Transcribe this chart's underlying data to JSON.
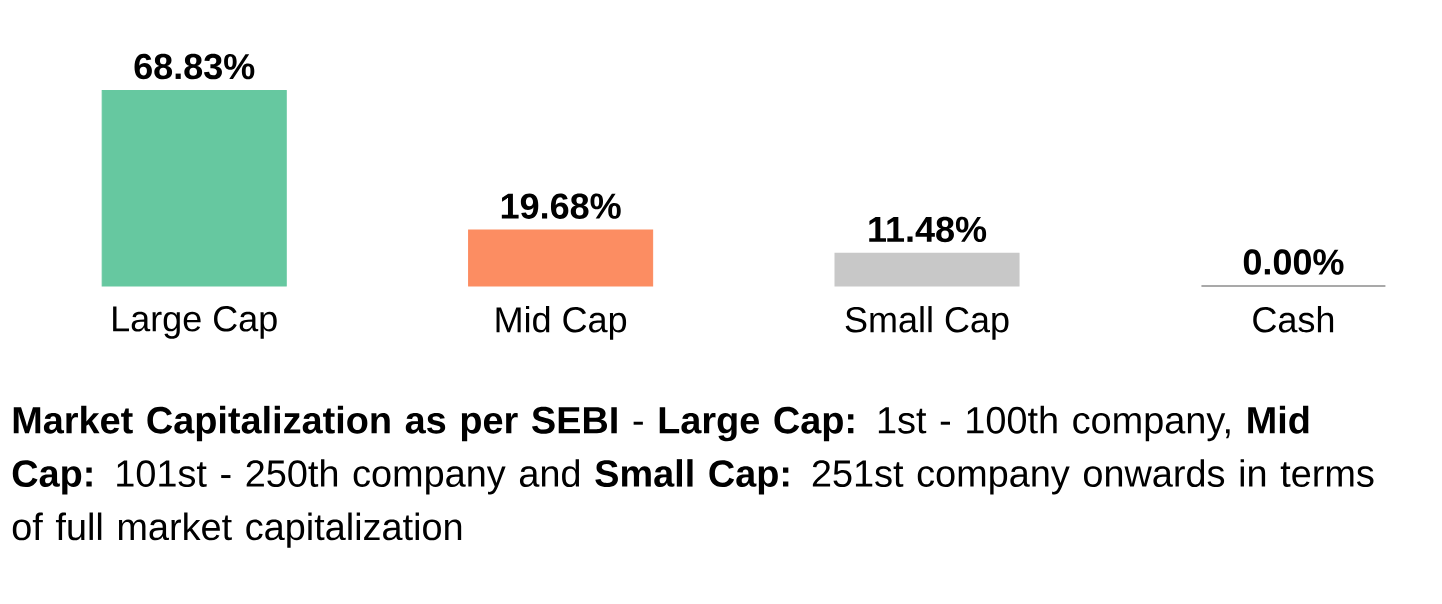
{
  "chart_data": {
    "type": "bar",
    "categories": [
      "Large Cap",
      "Mid Cap",
      "Small Cap",
      "Cash"
    ],
    "values": [
      68.83,
      19.68,
      11.48,
      0.0
    ],
    "colors": [
      "#66c8a0",
      "#fc8d62",
      "#c8c8c8",
      "#555555"
    ],
    "value_labels": [
      "68.83%",
      "19.68%",
      "11.48%",
      "0.00%"
    ],
    "annotations": [
      "**Market Capitalization as per SEBI** - **Large Cap:** 1st - 100th company, **Mid Cap:** 101st - 250th company and **Small Cap:** 251st company onwards in terms of full market capitalization"
    ]
  }
}
